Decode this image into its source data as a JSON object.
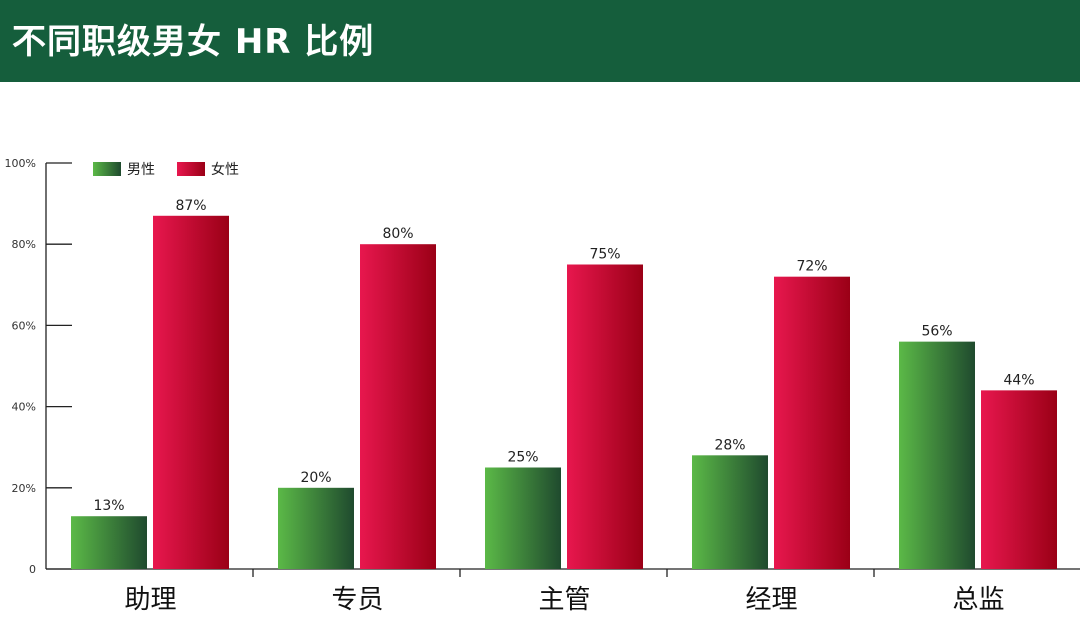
{
  "header": {
    "title": "不同职级男女 HR 比例"
  },
  "chart_data": {
    "type": "bar",
    "title": "不同职级男女 HR 比例",
    "xlabel": "",
    "ylabel": "",
    "categories": [
      "助理",
      "专员",
      "主管",
      "经理",
      "总监"
    ],
    "series": [
      {
        "name": "男性",
        "values": [
          13,
          20,
          25,
          28,
          56
        ],
        "labels": [
          "13%",
          "20%",
          "25%",
          "28%",
          "56%"
        ],
        "color": "#2e7d32"
      },
      {
        "name": "女性",
        "values": [
          87,
          80,
          75,
          72,
          44
        ],
        "labels": [
          "87%",
          "80%",
          "75%",
          "72%",
          "44%"
        ],
        "color": "#c8102e"
      }
    ],
    "ylim": [
      0,
      100
    ],
    "y_ticks": [
      0,
      20,
      40,
      60,
      80,
      100
    ],
    "y_tick_labels": [
      "0",
      "20%",
      "40%",
      "60%",
      "80%",
      "100%"
    ],
    "grid": false,
    "legend_position": "top-left"
  }
}
